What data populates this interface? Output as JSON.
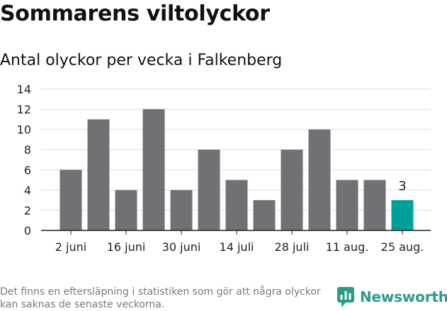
{
  "title": "Sommarens viltolyckor",
  "subtitle": "Antal olyckor per vecka i Falkenberg",
  "footnote": "Det finns en eftersläpning i statistiken som gör att några olyckor kan saknas de senaste veckorna.",
  "brand": {
    "name": "Newsworthy",
    "icon": "newsworthy-logo-icon",
    "color": "#2b9b8a"
  },
  "chart_data": {
    "type": "bar",
    "title": "Sommarens viltolyckor",
    "subtitle": "Antal olyckor per vecka i Falkenberg",
    "xlabel": "",
    "ylabel": "",
    "ylim": [
      0,
      14
    ],
    "yticks": [
      0,
      2,
      4,
      6,
      8,
      10,
      12,
      14
    ],
    "grid": true,
    "legend": "none",
    "values": [
      6,
      11,
      4,
      12,
      4,
      8,
      5,
      3,
      8,
      10,
      5,
      5,
      3
    ],
    "xtick_labels": [
      {
        "index": 0,
        "label": "2 juni"
      },
      {
        "index": 2,
        "label": "16 juni"
      },
      {
        "index": 4,
        "label": "30 juni"
      },
      {
        "index": 6,
        "label": "14 juli"
      },
      {
        "index": 8,
        "label": "28 juli"
      },
      {
        "index": 10,
        "label": "11 aug."
      },
      {
        "index": 12,
        "label": "25 aug."
      }
    ],
    "highlight_index": 12,
    "annotations": [
      {
        "index": 12,
        "text": "3"
      }
    ],
    "colors": {
      "bar": "#717075",
      "highlight": "#00a09a",
      "grid": "#dcdcdc",
      "axis": "#222222"
    }
  }
}
